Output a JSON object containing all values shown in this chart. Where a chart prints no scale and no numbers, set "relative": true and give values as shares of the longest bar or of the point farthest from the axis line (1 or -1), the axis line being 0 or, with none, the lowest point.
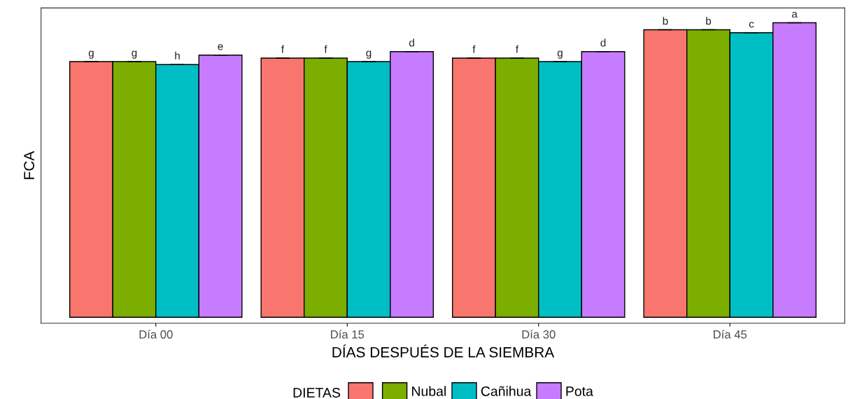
{
  "chart_data": {
    "type": "bar",
    "relative": true,
    "xlabel": "DÍAS DESPUÉS DE LA SIEMBRA",
    "ylabel": "FCA",
    "legend_title": "DIETAS",
    "legend": "bottom",
    "grid": false,
    "categories": [
      "Día 00",
      "Día 15",
      "Día 30",
      "Día 45"
    ],
    "series": [
      {
        "color": "#f8766d",
        "values": [
          0.868,
          0.88,
          0.88,
          0.976
        ]
      },
      {
        "name": "Nubal",
        "color": "#7cae00",
        "values": [
          0.868,
          0.88,
          0.88,
          0.976
        ]
      },
      {
        "name": "Cañihua",
        "color": "#00bfc4",
        "values": [
          0.858,
          0.868,
          0.868,
          0.966
        ]
      },
      {
        "name": "Pota",
        "color": "#c77cff",
        "values": [
          0.89,
          0.902,
          0.902,
          1
        ]
      }
    ],
    "annotations": [
      "g",
      "g",
      "h",
      "e",
      "f",
      "f",
      "g",
      "d",
      "f",
      "f",
      "g",
      "d",
      "b",
      "b",
      "c",
      "a"
    ]
  }
}
